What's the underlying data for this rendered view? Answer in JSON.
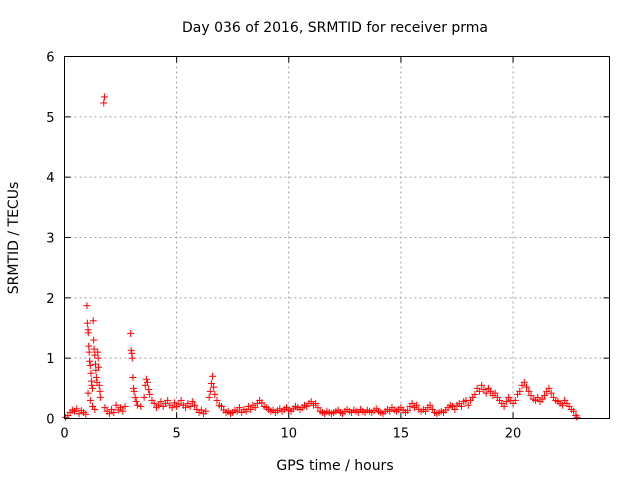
{
  "chart_data": {
    "type": "scatter",
    "title": "Day 036 of 2016, SRMTID for receiver prma",
    "xlabel": "GPS time / hours",
    "ylabel": "SRMTID / TECUs",
    "xlim": [
      0,
      24.3
    ],
    "ylim": [
      0,
      6
    ],
    "xticks": [
      0,
      5,
      10,
      15,
      20
    ],
    "yticks": [
      0,
      1,
      2,
      3,
      4,
      5,
      6
    ],
    "grid": true,
    "marker": "+",
    "series": [
      {
        "name": "prma",
        "color": "#ff0000",
        "points": [
          [
            0.05,
            0.02
          ],
          [
            0.15,
            0.05
          ],
          [
            0.25,
            0.1
          ],
          [
            0.35,
            0.14
          ],
          [
            0.45,
            0.12
          ],
          [
            0.55,
            0.16
          ],
          [
            0.65,
            0.08
          ],
          [
            0.75,
            0.13
          ],
          [
            0.85,
            0.1
          ],
          [
            0.95,
            0.07
          ],
          [
            1.0,
            1.87
          ],
          [
            1.02,
            1.58
          ],
          [
            1.05,
            1.47
          ],
          [
            1.06,
            1.42
          ],
          [
            1.08,
            1.2
          ],
          [
            1.1,
            1.1
          ],
          [
            1.12,
            0.95
          ],
          [
            1.15,
            0.88
          ],
          [
            1.18,
            0.75
          ],
          [
            1.2,
            0.62
          ],
          [
            1.22,
            0.55
          ],
          [
            1.25,
            0.5
          ],
          [
            1.28,
            1.62
          ],
          [
            1.3,
            1.3
          ],
          [
            1.32,
            1.15
          ],
          [
            1.35,
            1.05
          ],
          [
            1.38,
            0.9
          ],
          [
            1.4,
            0.8
          ],
          [
            1.42,
            0.68
          ],
          [
            1.45,
            0.6
          ],
          [
            1.48,
            1.1
          ],
          [
            1.5,
            1.0
          ],
          [
            1.52,
            0.85
          ],
          [
            1.55,
            0.55
          ],
          [
            1.58,
            0.45
          ],
          [
            1.6,
            0.35
          ],
          [
            1.05,
            0.42
          ],
          [
            1.15,
            0.3
          ],
          [
            1.25,
            0.2
          ],
          [
            1.35,
            0.15
          ],
          [
            1.75,
            5.23
          ],
          [
            1.78,
            5.33
          ],
          [
            1.8,
            0.18
          ],
          [
            1.9,
            0.12
          ],
          [
            2.0,
            0.08
          ],
          [
            2.1,
            0.15
          ],
          [
            2.2,
            0.1
          ],
          [
            2.3,
            0.22
          ],
          [
            2.4,
            0.14
          ],
          [
            2.5,
            0.18
          ],
          [
            2.6,
            0.12
          ],
          [
            2.7,
            0.2
          ],
          [
            2.95,
            1.41
          ],
          [
            2.97,
            1.13
          ],
          [
            3.0,
            1.08
          ],
          [
            3.02,
            1.0
          ],
          [
            3.05,
            0.68
          ],
          [
            3.08,
            0.5
          ],
          [
            3.1,
            0.45
          ],
          [
            3.15,
            0.35
          ],
          [
            3.2,
            0.28
          ],
          [
            3.25,
            0.22
          ],
          [
            3.4,
            0.2
          ],
          [
            3.55,
            0.35
          ],
          [
            3.6,
            0.55
          ],
          [
            3.65,
            0.65
          ],
          [
            3.7,
            0.6
          ],
          [
            3.75,
            0.48
          ],
          [
            3.8,
            0.4
          ],
          [
            3.9,
            0.3
          ],
          [
            4.0,
            0.25
          ],
          [
            4.1,
            0.18
          ],
          [
            4.2,
            0.22
          ],
          [
            4.3,
            0.28
          ],
          [
            4.4,
            0.2
          ],
          [
            4.5,
            0.25
          ],
          [
            4.6,
            0.3
          ],
          [
            4.7,
            0.22
          ],
          [
            4.8,
            0.18
          ],
          [
            4.9,
            0.26
          ],
          [
            5.0,
            0.2
          ],
          [
            5.1,
            0.24
          ],
          [
            5.2,
            0.3
          ],
          [
            5.3,
            0.22
          ],
          [
            5.4,
            0.18
          ],
          [
            5.5,
            0.25
          ],
          [
            5.6,
            0.2
          ],
          [
            5.7,
            0.28
          ],
          [
            5.8,
            0.22
          ],
          [
            5.9,
            0.15
          ],
          [
            6.0,
            0.1
          ],
          [
            6.1,
            0.14
          ],
          [
            6.2,
            0.08
          ],
          [
            6.3,
            0.12
          ],
          [
            6.45,
            0.35
          ],
          [
            6.5,
            0.45
          ],
          [
            6.55,
            0.58
          ],
          [
            6.6,
            0.7
          ],
          [
            6.65,
            0.52
          ],
          [
            6.7,
            0.4
          ],
          [
            6.8,
            0.3
          ],
          [
            6.9,
            0.22
          ],
          [
            7.0,
            0.2
          ],
          [
            7.1,
            0.14
          ],
          [
            7.2,
            0.1
          ],
          [
            7.3,
            0.12
          ],
          [
            7.4,
            0.08
          ],
          [
            7.5,
            0.1
          ],
          [
            7.6,
            0.14
          ],
          [
            7.7,
            0.12
          ],
          [
            7.8,
            0.18
          ],
          [
            7.9,
            0.1
          ],
          [
            8.0,
            0.15
          ],
          [
            8.1,
            0.12
          ],
          [
            8.2,
            0.2
          ],
          [
            8.3,
            0.15
          ],
          [
            8.4,
            0.22
          ],
          [
            8.5,
            0.18
          ],
          [
            8.6,
            0.25
          ],
          [
            8.7,
            0.3
          ],
          [
            8.8,
            0.26
          ],
          [
            8.9,
            0.2
          ],
          [
            9.0,
            0.18
          ],
          [
            9.1,
            0.15
          ],
          [
            9.2,
            0.12
          ],
          [
            9.3,
            0.14
          ],
          [
            9.4,
            0.1
          ],
          [
            9.5,
            0.13
          ],
          [
            9.6,
            0.16
          ],
          [
            9.7,
            0.12
          ],
          [
            9.8,
            0.15
          ],
          [
            9.9,
            0.18
          ],
          [
            10.0,
            0.14
          ],
          [
            10.1,
            0.12
          ],
          [
            10.2,
            0.16
          ],
          [
            10.3,
            0.2
          ],
          [
            10.4,
            0.18
          ],
          [
            10.5,
            0.15
          ],
          [
            10.6,
            0.18
          ],
          [
            10.7,
            0.22
          ],
          [
            10.8,
            0.2
          ],
          [
            10.9,
            0.25
          ],
          [
            11.0,
            0.28
          ],
          [
            11.1,
            0.22
          ],
          [
            11.2,
            0.25
          ],
          [
            11.3,
            0.18
          ],
          [
            11.4,
            0.12
          ],
          [
            11.5,
            0.1
          ],
          [
            11.6,
            0.08
          ],
          [
            11.7,
            0.12
          ],
          [
            11.8,
            0.1
          ],
          [
            11.9,
            0.08
          ],
          [
            12.0,
            0.1
          ],
          [
            12.1,
            0.12
          ],
          [
            12.2,
            0.14
          ],
          [
            12.3,
            0.1
          ],
          [
            12.4,
            0.08
          ],
          [
            12.5,
            0.12
          ],
          [
            12.6,
            0.15
          ],
          [
            12.7,
            0.12
          ],
          [
            12.8,
            0.1
          ],
          [
            12.9,
            0.14
          ],
          [
            13.0,
            0.12
          ],
          [
            13.1,
            0.1
          ],
          [
            13.2,
            0.15
          ],
          [
            13.3,
            0.12
          ],
          [
            13.4,
            0.1
          ],
          [
            13.5,
            0.14
          ],
          [
            13.6,
            0.12
          ],
          [
            13.7,
            0.1
          ],
          [
            13.8,
            0.13
          ],
          [
            13.9,
            0.16
          ],
          [
            14.0,
            0.12
          ],
          [
            14.1,
            0.1
          ],
          [
            14.2,
            0.08
          ],
          [
            14.3,
            0.12
          ],
          [
            14.4,
            0.15
          ],
          [
            14.5,
            0.12
          ],
          [
            14.6,
            0.18
          ],
          [
            14.7,
            0.14
          ],
          [
            14.8,
            0.12
          ],
          [
            14.9,
            0.15
          ],
          [
            15.0,
            0.18
          ],
          [
            15.1,
            0.14
          ],
          [
            15.2,
            0.1
          ],
          [
            15.3,
            0.13
          ],
          [
            15.4,
            0.2
          ],
          [
            15.5,
            0.25
          ],
          [
            15.6,
            0.18
          ],
          [
            15.7,
            0.22
          ],
          [
            15.8,
            0.15
          ],
          [
            15.9,
            0.12
          ],
          [
            16.0,
            0.15
          ],
          [
            16.1,
            0.12
          ],
          [
            16.2,
            0.18
          ],
          [
            16.3,
            0.22
          ],
          [
            16.4,
            0.15
          ],
          [
            16.5,
            0.1
          ],
          [
            16.6,
            0.08
          ],
          [
            16.7,
            0.1
          ],
          [
            16.8,
            0.12
          ],
          [
            16.9,
            0.1
          ],
          [
            17.0,
            0.14
          ],
          [
            17.1,
            0.18
          ],
          [
            17.2,
            0.22
          ],
          [
            17.3,
            0.2
          ],
          [
            17.4,
            0.15
          ],
          [
            17.5,
            0.22
          ],
          [
            17.6,
            0.25
          ],
          [
            17.7,
            0.2
          ],
          [
            17.8,
            0.28
          ],
          [
            17.9,
            0.3
          ],
          [
            18.0,
            0.22
          ],
          [
            18.1,
            0.3
          ],
          [
            18.2,
            0.35
          ],
          [
            18.3,
            0.4
          ],
          [
            18.4,
            0.5
          ],
          [
            18.5,
            0.45
          ],
          [
            18.6,
            0.55
          ],
          [
            18.7,
            0.48
          ],
          [
            18.8,
            0.42
          ],
          [
            18.9,
            0.5
          ],
          [
            19.0,
            0.45
          ],
          [
            19.1,
            0.38
          ],
          [
            19.2,
            0.42
          ],
          [
            19.3,
            0.35
          ],
          [
            19.4,
            0.3
          ],
          [
            19.5,
            0.25
          ],
          [
            19.6,
            0.2
          ],
          [
            19.7,
            0.28
          ],
          [
            19.8,
            0.35
          ],
          [
            19.9,
            0.3
          ],
          [
            20.0,
            0.25
          ],
          [
            20.1,
            0.3
          ],
          [
            20.2,
            0.4
          ],
          [
            20.3,
            0.45
          ],
          [
            20.4,
            0.55
          ],
          [
            20.5,
            0.6
          ],
          [
            20.6,
            0.52
          ],
          [
            20.7,
            0.45
          ],
          [
            20.8,
            0.38
          ],
          [
            20.9,
            0.32
          ],
          [
            21.0,
            0.3
          ],
          [
            21.1,
            0.35
          ],
          [
            21.2,
            0.28
          ],
          [
            21.3,
            0.32
          ],
          [
            21.4,
            0.38
          ],
          [
            21.5,
            0.45
          ],
          [
            21.6,
            0.5
          ],
          [
            21.7,
            0.42
          ],
          [
            21.8,
            0.35
          ],
          [
            21.9,
            0.3
          ],
          [
            22.0,
            0.28
          ],
          [
            22.1,
            0.25
          ],
          [
            22.2,
            0.22
          ],
          [
            22.3,
            0.3
          ],
          [
            22.4,
            0.25
          ],
          [
            22.5,
            0.2
          ],
          [
            22.6,
            0.15
          ],
          [
            22.7,
            0.12
          ],
          [
            22.8,
            0.05
          ],
          [
            22.85,
            0.02
          ]
        ]
      }
    ]
  }
}
